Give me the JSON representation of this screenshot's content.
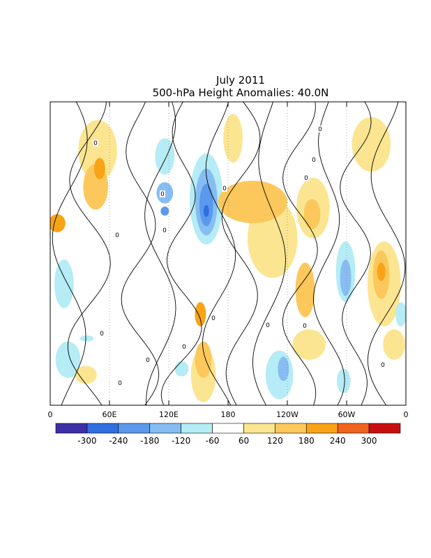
{
  "chart_data": {
    "type": "heatmap",
    "title": "July 2011",
    "subtitle": "500-hPa Height Anomalies: 40.0N",
    "x_ticks": [
      "0",
      "60E",
      "120E",
      "180",
      "120W",
      "60W",
      "0"
    ],
    "x_range": [
      0,
      360
    ],
    "y_range": [
      0,
      1
    ],
    "grid": "dotted vertical lines at 60E, 120E, 180, 120W, 60W",
    "contour_label": "0",
    "colorbar": {
      "labels": [
        "-300",
        "-240",
        "-180",
        "-120",
        "-60",
        "60",
        "120",
        "180",
        "240",
        "300"
      ],
      "colors": [
        "#3c2fa8",
        "#2f6fe0",
        "#5a99ec",
        "#86bdf2",
        "#b5ecf5",
        "#ffffff",
        "#fbe591",
        "#fcc85b",
        "#f9a316",
        "#f0641e",
        "#c80f0f"
      ]
    },
    "anomaly_regions": [
      {
        "lon": 7,
        "t": 0.4,
        "level": 180,
        "rx": 6,
        "ry": 0.03
      },
      {
        "lon": 37,
        "t": 0.78,
        "level": -60,
        "rx": 5,
        "ry": 0.01
      },
      {
        "lon": 48,
        "t": 0.16,
        "level": 60,
        "rx": 14,
        "ry": 0.1
      },
      {
        "lon": 46,
        "t": 0.28,
        "level": 120,
        "rx": 9,
        "ry": 0.075
      },
      {
        "lon": 50,
        "t": 0.22,
        "level": 180,
        "rx": 4,
        "ry": 0.035
      },
      {
        "lon": 14,
        "t": 0.6,
        "level": -60,
        "rx": 7,
        "ry": 0.08
      },
      {
        "lon": 18,
        "t": 0.85,
        "level": -60,
        "rx": 9,
        "ry": 0.06
      },
      {
        "lon": 36,
        "t": 0.9,
        "level": 60,
        "rx": 8,
        "ry": 0.03
      },
      {
        "lon": 116,
        "t": 0.18,
        "level": -60,
        "rx": 7,
        "ry": 0.06
      },
      {
        "lon": 116,
        "t": 0.3,
        "level": -120,
        "rx": 6,
        "ry": 0.035
      },
      {
        "lon": 116,
        "t": 0.36,
        "level": -180,
        "rx": 3,
        "ry": 0.015
      },
      {
        "lon": 133,
        "t": 0.88,
        "level": -60,
        "rx": 5,
        "ry": 0.025
      },
      {
        "lon": 155,
        "t": 0.9,
        "level": 60,
        "rx": 9,
        "ry": 0.09
      },
      {
        "lon": 155,
        "t": 0.85,
        "level": 120,
        "rx": 6,
        "ry": 0.06
      },
      {
        "lon": 152,
        "t": 0.7,
        "level": 180,
        "rx": 4,
        "ry": 0.04
      },
      {
        "lon": 158,
        "t": 0.32,
        "level": -60,
        "rx": 12,
        "ry": 0.15
      },
      {
        "lon": 158,
        "t": 0.33,
        "level": -120,
        "rx": 8,
        "ry": 0.11
      },
      {
        "lon": 158,
        "t": 0.34,
        "level": -180,
        "rx": 5,
        "ry": 0.07
      },
      {
        "lon": 158,
        "t": 0.36,
        "level": -240,
        "rx": 2,
        "ry": 0.02
      },
      {
        "lon": 185,
        "t": 0.12,
        "level": 60,
        "rx": 7,
        "ry": 0.08
      },
      {
        "lon": 205,
        "t": 0.33,
        "level": 120,
        "rx": 25,
        "ry": 0.07
      },
      {
        "lon": 225,
        "t": 0.45,
        "level": 60,
        "rx": 18,
        "ry": 0.13
      },
      {
        "lon": 232,
        "t": 0.9,
        "level": -60,
        "rx": 10,
        "ry": 0.08
      },
      {
        "lon": 236,
        "t": 0.88,
        "level": -120,
        "rx": 4,
        "ry": 0.04
      },
      {
        "lon": 262,
        "t": 0.8,
        "level": 60,
        "rx": 12,
        "ry": 0.05
      },
      {
        "lon": 266,
        "t": 0.35,
        "level": 60,
        "rx": 12,
        "ry": 0.1
      },
      {
        "lon": 258,
        "t": 0.62,
        "level": 120,
        "rx": 7,
        "ry": 0.09
      },
      {
        "lon": 265,
        "t": 0.37,
        "level": 120,
        "rx": 6,
        "ry": 0.05
      },
      {
        "lon": 297,
        "t": 0.92,
        "level": -60,
        "rx": 5,
        "ry": 0.04
      },
      {
        "lon": 299,
        "t": 0.56,
        "level": -60,
        "rx": 7,
        "ry": 0.1
      },
      {
        "lon": 299,
        "t": 0.58,
        "level": -120,
        "rx": 4,
        "ry": 0.06
      },
      {
        "lon": 338,
        "t": 0.6,
        "level": 60,
        "rx": 12,
        "ry": 0.14
      },
      {
        "lon": 335,
        "t": 0.57,
        "level": 120,
        "rx": 6,
        "ry": 0.08
      },
      {
        "lon": 335,
        "t": 0.56,
        "level": 180,
        "rx": 3,
        "ry": 0.03
      },
      {
        "lon": 348,
        "t": 0.8,
        "level": 60,
        "rx": 8,
        "ry": 0.05
      },
      {
        "lon": 355,
        "t": 0.7,
        "level": -60,
        "rx": 4,
        "ry": 0.04
      },
      {
        "lon": 325,
        "t": 0.14,
        "level": 60,
        "rx": 14,
        "ry": 0.09
      }
    ]
  }
}
